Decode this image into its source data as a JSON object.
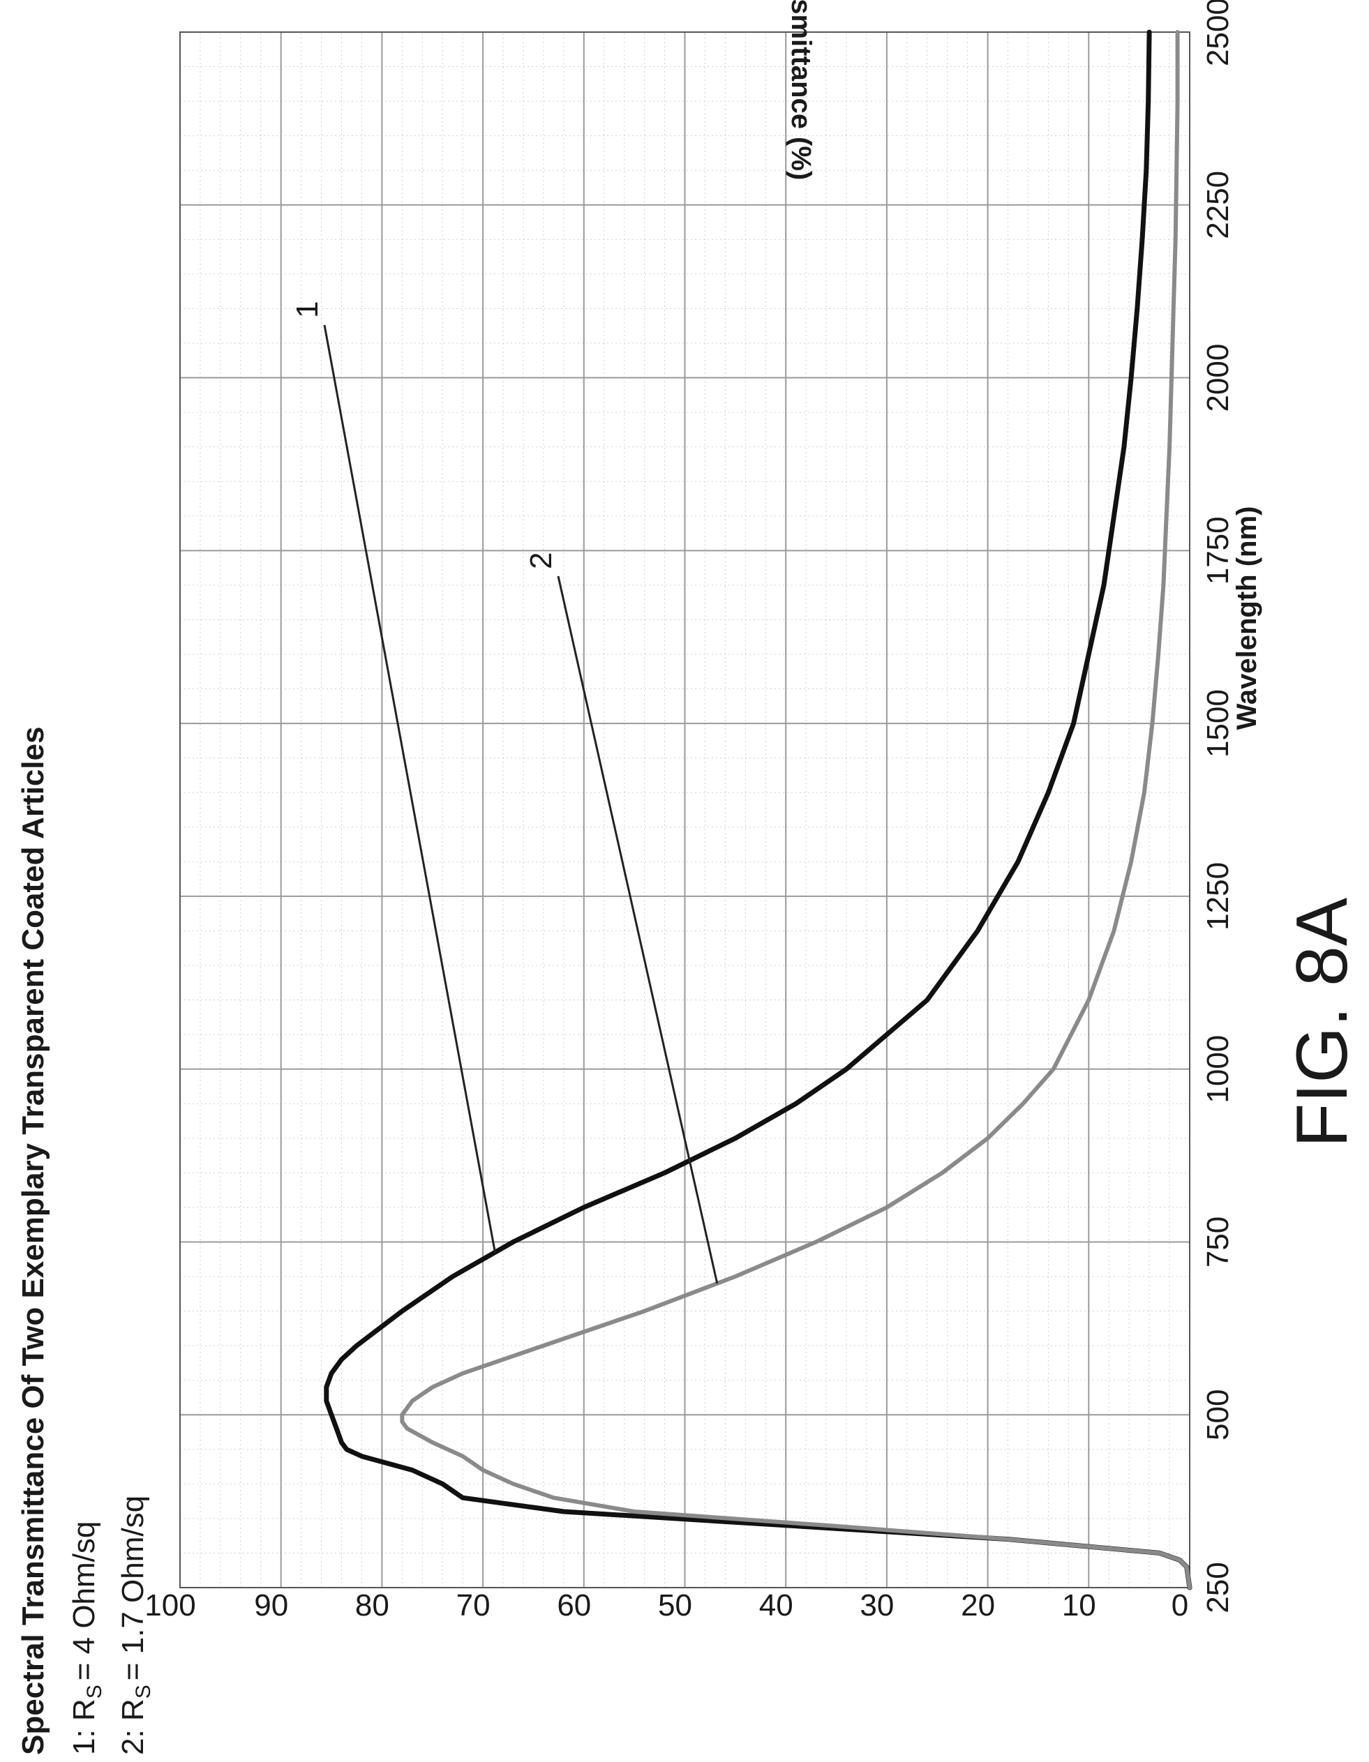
{
  "chart_data": {
    "type": "line",
    "title": "Spectral Transmittance Of Two Exemplary Transparent Coated Articles",
    "xlabel": "Wavelength (nm)",
    "ylabel": "Transmittance (%)",
    "xlim": [
      250,
      2500
    ],
    "ylim": [
      0,
      100
    ],
    "x_ticks": [
      250,
      500,
      750,
      1000,
      1250,
      1500,
      1750,
      2000,
      2250,
      2500
    ],
    "y_ticks": [
      0,
      10,
      20,
      30,
      40,
      50,
      60,
      70,
      80,
      90,
      100
    ],
    "grid": true,
    "legend": [
      {
        "prefix": "1: R",
        "sub": "S",
        "rest": "= 4 Ohm/sq"
      },
      {
        "prefix": "2: R",
        "sub": "S",
        "rest": "= 1.7 Ohm/sq"
      }
    ],
    "series": [
      {
        "color": "#111111",
        "callout": "1",
        "x": [
          250,
          280,
          290,
          300,
          320,
          340,
          360,
          380,
          400,
          420,
          440,
          450,
          460,
          480,
          500,
          520,
          540,
          560,
          580,
          600,
          650,
          700,
          750,
          800,
          850,
          900,
          950,
          1000,
          1100,
          1200,
          1300,
          1400,
          1500,
          1600,
          1700,
          1800,
          1900,
          2000,
          2100,
          2200,
          2300,
          2400,
          2500
        ],
        "y": [
          0,
          0.3,
          1,
          3,
          18,
          40,
          62,
          72,
          74,
          77,
          82,
          83.5,
          84,
          84.5,
          85,
          85.5,
          85.5,
          85,
          84,
          82.5,
          78,
          73,
          67,
          60,
          52,
          45,
          39,
          34,
          26,
          21,
          17,
          14,
          11.5,
          10,
          8.5,
          7.5,
          6.5,
          5.8,
          5.2,
          4.7,
          4.3,
          4.1,
          4
        ]
      },
      {
        "color": "#8a8a8a",
        "callout": "2",
        "x": [
          250,
          280,
          290,
          300,
          320,
          340,
          360,
          380,
          400,
          420,
          440,
          460,
          480,
          490,
          500,
          510,
          520,
          540,
          560,
          580,
          600,
          650,
          700,
          750,
          800,
          850,
          900,
          950,
          1000,
          1100,
          1200,
          1300,
          1400,
          1500,
          1600,
          1700,
          1800,
          1900,
          2000,
          2100,
          2200,
          2300,
          2400,
          2500
        ],
        "y": [
          0,
          0.3,
          1,
          3,
          18,
          36,
          55,
          63,
          67,
          70,
          72,
          75,
          77.5,
          78,
          78,
          77.5,
          77,
          75,
          72,
          68,
          64,
          54,
          45,
          37,
          30,
          24.5,
          20,
          16.5,
          13.5,
          10,
          7.5,
          5.8,
          4.5,
          3.7,
          3.1,
          2.6,
          2.3,
          2,
          1.8,
          1.6,
          1.4,
          1.3,
          1.2,
          1.2
        ]
      }
    ]
  },
  "figure_label": "FIG. 8A"
}
